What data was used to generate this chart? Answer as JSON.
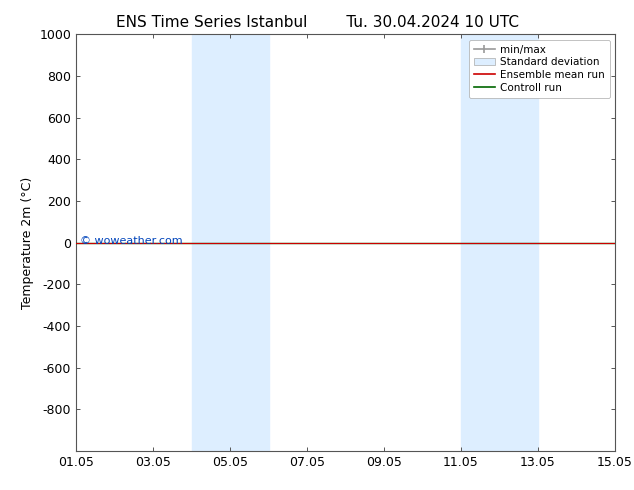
{
  "title_left": "ENS Time Series Istanbul",
  "title_right": "Tu. 30.04.2024 10 UTC",
  "ylabel": "Temperature 2m (°C)",
  "ylim_top": -1000,
  "ylim_bottom": 1000,
  "yticks": [
    -800,
    -600,
    -400,
    -200,
    0,
    200,
    400,
    600,
    800,
    1000
  ],
  "xtick_labels": [
    "01.05",
    "03.05",
    "05.05",
    "07.05",
    "09.05",
    "11.05",
    "13.05",
    "15.05"
  ],
  "xtick_positions": [
    0,
    2,
    4,
    6,
    8,
    10,
    12,
    14
  ],
  "shaded_bands": [
    {
      "x_start": 3.0,
      "x_end": 3.75
    },
    {
      "x_start": 3.75,
      "x_end": 5.0
    },
    {
      "x_start": 10.0,
      "x_end": 10.75
    },
    {
      "x_start": 10.75,
      "x_end": 12.0
    }
  ],
  "control_run_y": 0,
  "ensemble_mean_y": 0,
  "watermark": "© woweather.com",
  "watermark_color": "#0044bb",
  "legend_labels": [
    "min/max",
    "Standard deviation",
    "Ensemble mean run",
    "Controll run"
  ],
  "legend_colors_line": [
    "#999999",
    "#bbccdd",
    "#cc0000",
    "#006600"
  ],
  "background_color": "#ffffff",
  "band_color": "#ddeeff",
  "title_fontsize": 11,
  "axis_fontsize": 9,
  "tick_fontsize": 9
}
